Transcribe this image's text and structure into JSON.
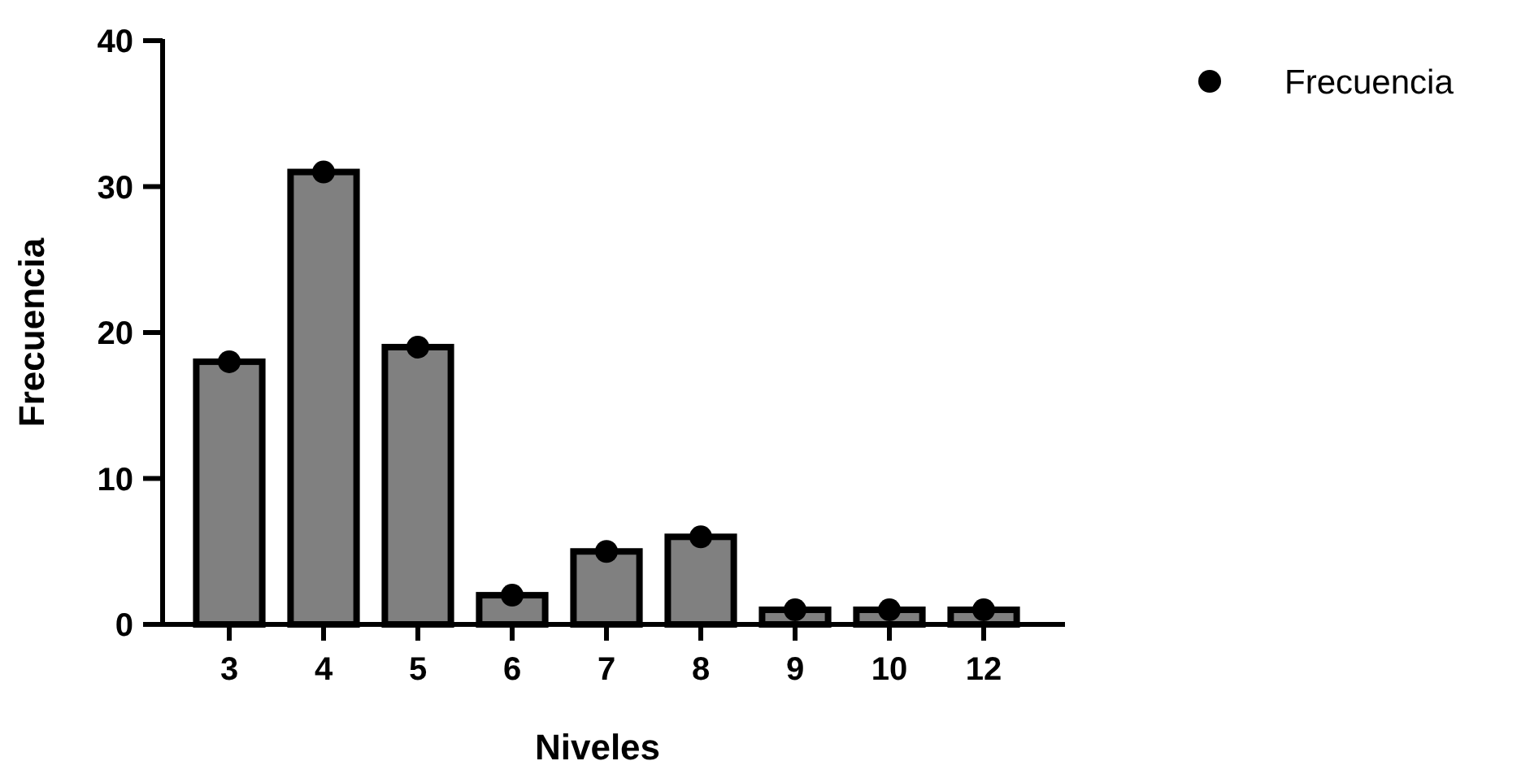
{
  "chart_data": {
    "type": "bar",
    "xlabel": "Niveles",
    "ylabel": "Frecuencia",
    "categories": [
      "3",
      "4",
      "5",
      "6",
      "7",
      "8",
      "9",
      "10",
      "12"
    ],
    "series": [
      {
        "color": "#808080",
        "values": [
          18,
          31,
          19,
          2,
          5,
          6,
          1,
          1,
          1
        ]
      },
      {
        "type": "scatter",
        "name": "Frecuencia",
        "color": "#000000",
        "x": [
          "3",
          "4",
          "5",
          "6",
          "7",
          "8",
          "9",
          "10",
          "12"
        ],
        "values": [
          18,
          31,
          19,
          2,
          5,
          6,
          1,
          1,
          1
        ]
      }
    ],
    "ylim": [
      0,
      40
    ],
    "yticks": [
      0,
      10,
      20,
      30,
      40
    ],
    "grid": false,
    "legend": "top right",
    "marker": "circle"
  }
}
